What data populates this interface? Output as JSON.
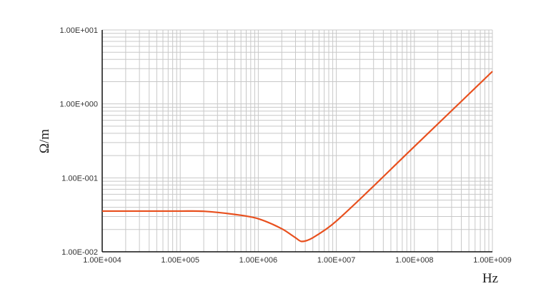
{
  "chart_data": {
    "type": "line",
    "title": "",
    "xlabel": "Hz",
    "ylabel": "Ω/m",
    "x_scale": "log",
    "y_scale": "log",
    "xlim": [
      10000,
      1000000000
    ],
    "ylim": [
      0.01,
      10
    ],
    "grid": true,
    "x_tick_labels": [
      "1.00E+004",
      "1.00E+005",
      "1.00E+006",
      "1.00E+007",
      "1.00E+008",
      "1.00E+009"
    ],
    "y_tick_labels": [
      "1.00E-002",
      "1.00E-001",
      "1.00E+000",
      "1.00E+001"
    ],
    "line_color": "#e8501e",
    "series": [
      {
        "x": [
          10000,
          100000,
          200000,
          500000,
          1000000,
          2000000,
          3000000,
          3600000,
          5000000,
          10000000,
          100000000,
          1000000000
        ],
        "y": [
          0.0355,
          0.0355,
          0.0353,
          0.032,
          0.028,
          0.0205,
          0.0155,
          0.0138,
          0.0155,
          0.026,
          0.265,
          2.75
        ]
      }
    ]
  }
}
